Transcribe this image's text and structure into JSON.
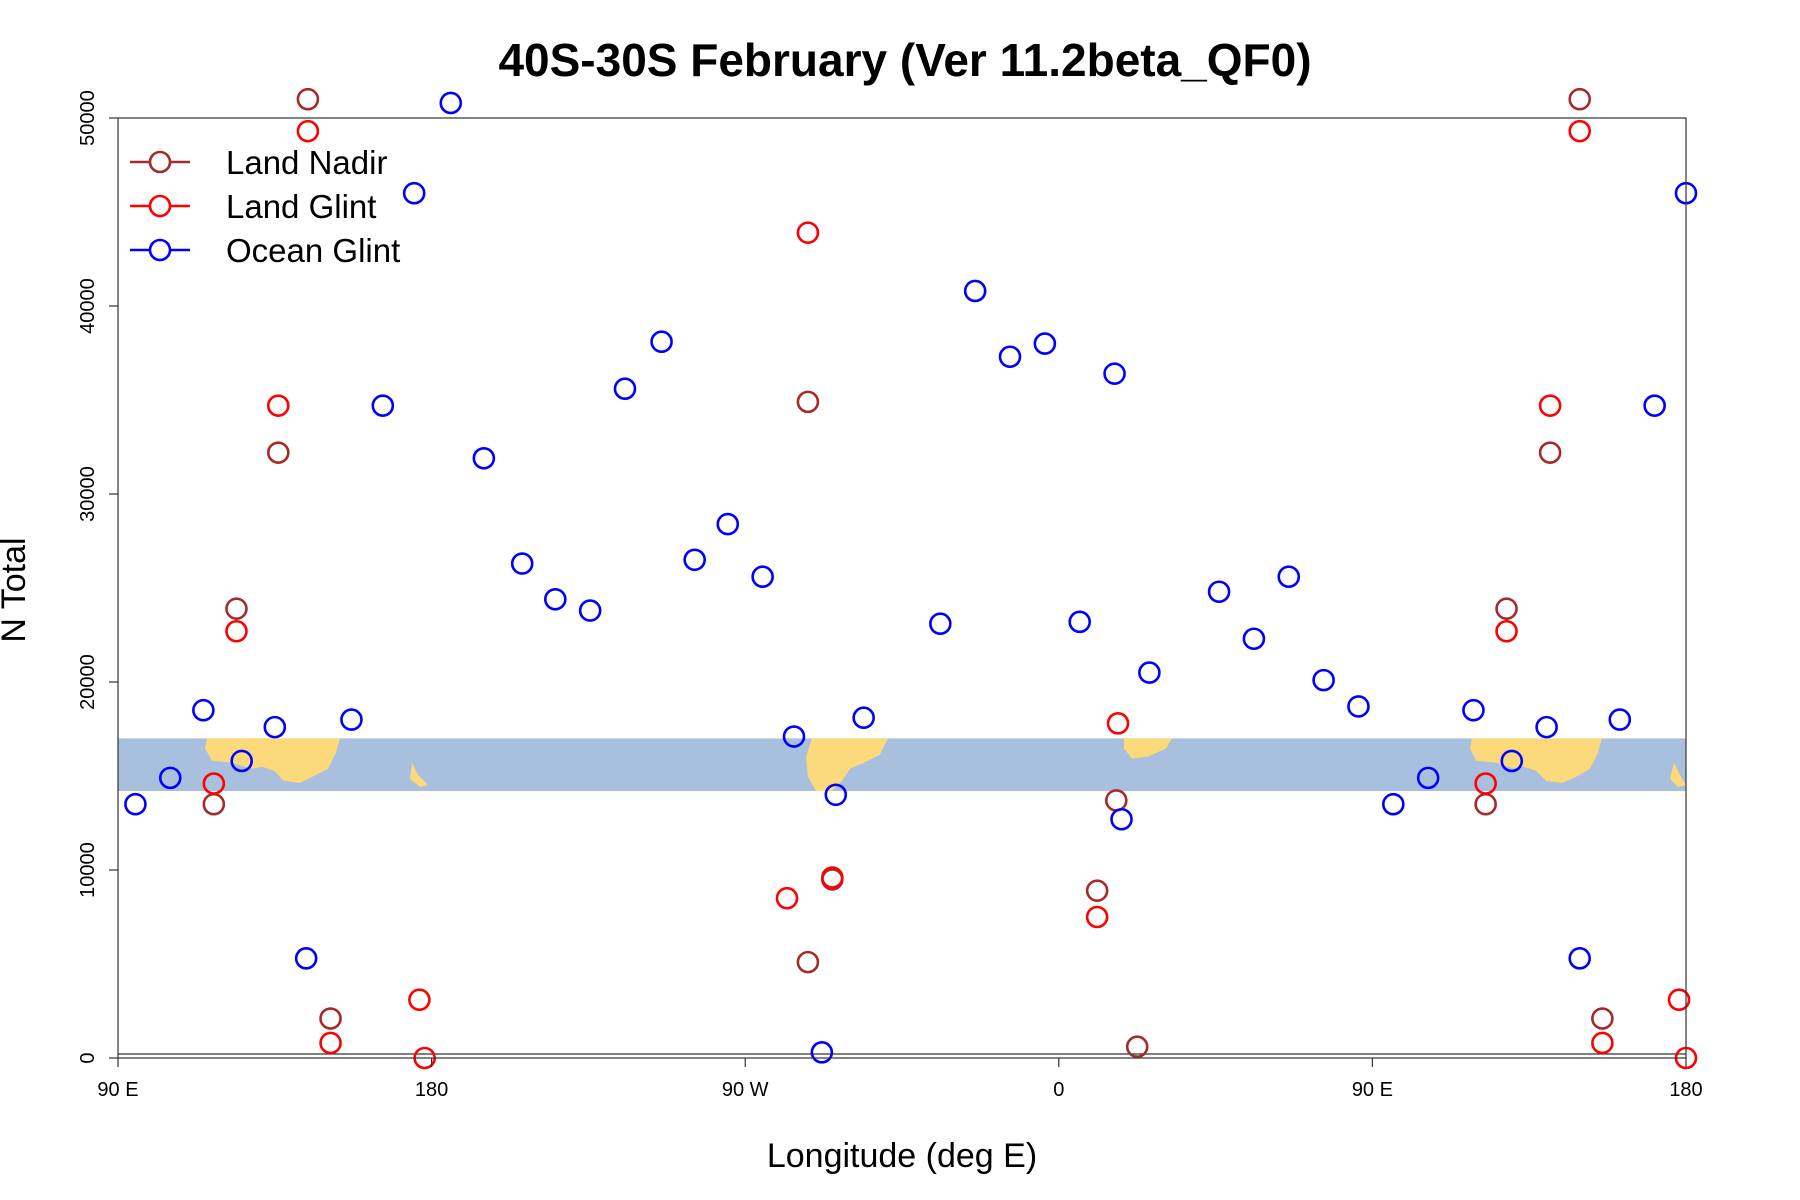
{
  "chart_data": {
    "type": "scatter",
    "title": "40S-30S February (Ver 11.2beta_QF0)",
    "xlabel": "Longitude (deg E)",
    "ylabel": "N Total",
    "xlim": [
      90,
      540
    ],
    "ylim": [
      0,
      50000
    ],
    "x_ticks": [
      {
        "value": 90,
        "label": "90 E"
      },
      {
        "value": 180,
        "label": "180"
      },
      {
        "value": 270,
        "label": "90 W"
      },
      {
        "value": 360,
        "label": "0"
      },
      {
        "value": 450,
        "label": "90 E"
      },
      {
        "value": 540,
        "label": "180"
      }
    ],
    "y_ticks": [
      {
        "value": 0,
        "label": "0"
      },
      {
        "value": 10000,
        "label": "10000"
      },
      {
        "value": 20000,
        "label": "20000"
      },
      {
        "value": 30000,
        "label": "30000"
      },
      {
        "value": 40000,
        "label": "40000"
      },
      {
        "value": 50000,
        "label": "50000"
      }
    ],
    "legend_position": "top-left",
    "grid": false,
    "series": [
      {
        "name": "Land Nadir",
        "color": "#a52a2a",
        "points": [
          {
            "x": 117.5,
            "y": 13500
          },
          {
            "x": 124,
            "y": 23900
          },
          {
            "x": 136,
            "y": 32200
          },
          {
            "x": 144.5,
            "y": 51000
          },
          {
            "x": 151,
            "y": 2100
          },
          {
            "x": 288,
            "y": 34900
          },
          {
            "x": 288,
            "y": 5100
          },
          {
            "x": 295,
            "y": 9500
          },
          {
            "x": 376.5,
            "y": 13700
          },
          {
            "x": 382.5,
            "y": 600
          },
          {
            "x": 371,
            "y": 8900
          },
          {
            "x": 482.5,
            "y": 13500
          },
          {
            "x": 488.5,
            "y": 23900
          },
          {
            "x": 501,
            "y": 32200
          },
          {
            "x": 509.5,
            "y": 51000
          },
          {
            "x": 516,
            "y": 2100
          }
        ]
      },
      {
        "name": "Land Glint",
        "color": "#ff0000",
        "points": [
          {
            "x": 117.5,
            "y": 14600
          },
          {
            "x": 124,
            "y": 22700
          },
          {
            "x": 136,
            "y": 34700
          },
          {
            "x": 144.5,
            "y": 49300
          },
          {
            "x": 151,
            "y": 800
          },
          {
            "x": 176.5,
            "y": 3100
          },
          {
            "x": 178,
            "y": 0
          },
          {
            "x": 288,
            "y": 43900
          },
          {
            "x": 282,
            "y": 8500
          },
          {
            "x": 295,
            "y": 9600
          },
          {
            "x": 371,
            "y": 7500
          },
          {
            "x": 377,
            "y": 17800
          },
          {
            "x": 482.5,
            "y": 14600
          },
          {
            "x": 488.5,
            "y": 22700
          },
          {
            "x": 501,
            "y": 34700
          },
          {
            "x": 509.5,
            "y": 49300
          },
          {
            "x": 516,
            "y": 800
          },
          {
            "x": 538,
            "y": 3100
          },
          {
            "x": 540,
            "y": 0
          }
        ]
      },
      {
        "name": "Ocean Glint",
        "color": "#0000ff",
        "points": [
          {
            "x": 95,
            "y": 13500
          },
          {
            "x": 105,
            "y": 14900
          },
          {
            "x": 114.5,
            "y": 18500
          },
          {
            "x": 125.5,
            "y": 15800
          },
          {
            "x": 135,
            "y": 17600
          },
          {
            "x": 144,
            "y": 5300
          },
          {
            "x": 157,
            "y": 18000
          },
          {
            "x": 166,
            "y": 34700
          },
          {
            "x": 175,
            "y": 46000
          },
          {
            "x": 185.5,
            "y": 50800
          },
          {
            "x": 195,
            "y": 31900
          },
          {
            "x": 206,
            "y": 26300
          },
          {
            "x": 215.5,
            "y": 24400
          },
          {
            "x": 225.5,
            "y": 23800
          },
          {
            "x": 235.5,
            "y": 35600
          },
          {
            "x": 246,
            "y": 38100
          },
          {
            "x": 255.5,
            "y": 26500
          },
          {
            "x": 265,
            "y": 28400
          },
          {
            "x": 275,
            "y": 25600
          },
          {
            "x": 284,
            "y": 17100
          },
          {
            "x": 292,
            "y": 300
          },
          {
            "x": 296,
            "y": 14000
          },
          {
            "x": 304,
            "y": 18100
          },
          {
            "x": 326,
            "y": 23100
          },
          {
            "x": 336,
            "y": 40800
          },
          {
            "x": 346,
            "y": 37300
          },
          {
            "x": 356,
            "y": 38000
          },
          {
            "x": 366,
            "y": 23200
          },
          {
            "x": 376,
            "y": 36400
          },
          {
            "x": 378,
            "y": 12700
          },
          {
            "x": 386,
            "y": 20500
          },
          {
            "x": 406,
            "y": 24800
          },
          {
            "x": 416,
            "y": 22300
          },
          {
            "x": 426,
            "y": 25600
          },
          {
            "x": 436,
            "y": 20100
          },
          {
            "x": 446,
            "y": 18700
          },
          {
            "x": 456,
            "y": 13500
          },
          {
            "x": 466,
            "y": 14900
          },
          {
            "x": 479,
            "y": 18500
          },
          {
            "x": 490,
            "y": 15800
          },
          {
            "x": 500,
            "y": 17600
          },
          {
            "x": 509.5,
            "y": 5300
          },
          {
            "x": 521,
            "y": 18000
          },
          {
            "x": 531,
            "y": 34700
          },
          {
            "x": 540,
            "y": 46000
          }
        ]
      }
    ],
    "map_band": {
      "y_min": 14200,
      "y_max": 17000,
      "ocean_color": "#a8bfde",
      "land_color": "#fcd97a"
    }
  }
}
